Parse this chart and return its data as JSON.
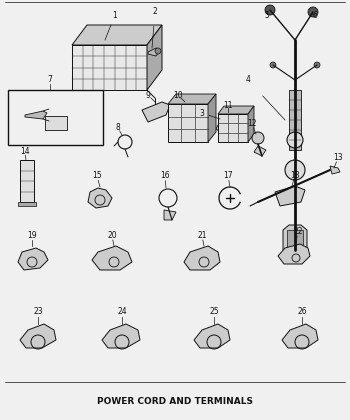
{
  "title": "POWER CORD AND TERMINALS",
  "title_fontsize": 6.5,
  "bg_color": "#f0f0f0",
  "fig_width": 3.5,
  "fig_height": 4.2,
  "dpi": 100,
  "lc": "#111111",
  "label_fs": 5.5
}
